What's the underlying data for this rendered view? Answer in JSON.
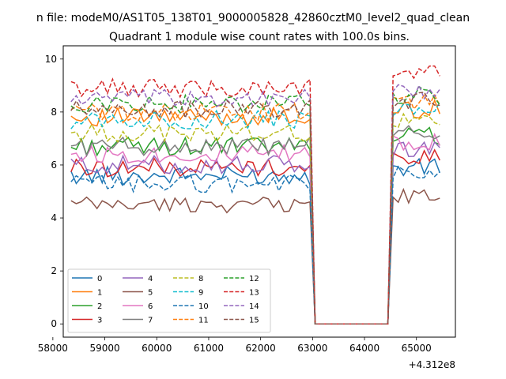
{
  "suptitle": "n file: modeM0/AS1T05_138T01_9000005828_42860cztM0_level2_quad_clean",
  "chart_data": {
    "type": "line",
    "title": "Quadrant 1 module wise count rates with 100.0s bins.",
    "xlabel": "",
    "ylabel": "",
    "x_offset_label": "+4.312e8",
    "xlim": [
      58200,
      65750
    ],
    "ylim": [
      -0.5,
      10.5
    ],
    "xticks": [
      58000,
      59000,
      60000,
      61000,
      62000,
      63000,
      64000,
      65000
    ],
    "xtick_labels": [
      "58000",
      "59000",
      "60000",
      "61000",
      "62000",
      "63000",
      "64000",
      "65000"
    ],
    "yticks": [
      0,
      2,
      4,
      6,
      8,
      10
    ],
    "ytick_labels": [
      "0",
      "2",
      "4",
      "6",
      "8",
      "10"
    ],
    "grid": false,
    "legend_location": "lower left",
    "legend_ncol": 4,
    "x_segments": [
      {
        "start": 58350,
        "end": 62950,
        "step": 100,
        "active": true
      },
      {
        "start": 63050,
        "end": 64450,
        "step": 100,
        "active": false
      },
      {
        "start": 64550,
        "end": 65450,
        "step": 100,
        "active": true
      }
    ],
    "series": [
      {
        "name": "0",
        "color": "#1f77b4",
        "dash": "solid",
        "base1": 5.6,
        "base2": 5.9,
        "amp": 0.35
      },
      {
        "name": "1",
        "color": "#ff7f0e",
        "dash": "solid",
        "base1": 7.8,
        "base2": 8.1,
        "amp": 0.35
      },
      {
        "name": "2",
        "color": "#2ca02c",
        "dash": "solid",
        "base1": 6.7,
        "base2": 7.1,
        "amp": 0.35
      },
      {
        "name": "3",
        "color": "#d62728",
        "dash": "solid",
        "base1": 5.9,
        "base2": 6.3,
        "amp": 0.35
      },
      {
        "name": "4",
        "color": "#9467bd",
        "dash": "solid",
        "base1": 6.0,
        "base2": 6.6,
        "amp": 0.35
      },
      {
        "name": "5",
        "color": "#8c564b",
        "dash": "solid",
        "base1": 4.5,
        "base2": 4.8,
        "amp": 0.3
      },
      {
        "name": "6",
        "color": "#e377c2",
        "dash": "solid",
        "base1": 6.4,
        "base2": 6.9,
        "amp": 0.35
      },
      {
        "name": "7",
        "color": "#7f7f7f",
        "dash": "solid",
        "base1": 6.7,
        "base2": 7.2,
        "amp": 0.35
      },
      {
        "name": "8",
        "color": "#bcbd22",
        "dash": "dashed",
        "base1": 7.2,
        "base2": 7.6,
        "amp": 0.35
      },
      {
        "name": "9",
        "color": "#17becf",
        "dash": "dashed",
        "base1": 7.7,
        "base2": 8.1,
        "amp": 0.35
      },
      {
        "name": "10",
        "color": "#1f77b4",
        "dash": "dashed",
        "base1": 5.3,
        "base2": 5.6,
        "amp": 0.35
      },
      {
        "name": "11",
        "color": "#ff7f0e",
        "dash": "dashed",
        "base1": 8.0,
        "base2": 8.4,
        "amp": 0.35
      },
      {
        "name": "12",
        "color": "#2ca02c",
        "dash": "dashed",
        "base1": 8.3,
        "base2": 8.6,
        "amp": 0.35
      },
      {
        "name": "13",
        "color": "#d62728",
        "dash": "dashed",
        "base1": 8.9,
        "base2": 9.4,
        "amp": 0.35
      },
      {
        "name": "14",
        "color": "#9467bd",
        "dash": "dashed",
        "base1": 8.5,
        "base2": 8.8,
        "amp": 0.35
      },
      {
        "name": "15",
        "color": "#8c564b",
        "dash": "dashed",
        "base1": 8.1,
        "base2": 8.4,
        "amp": 0.35
      }
    ]
  }
}
